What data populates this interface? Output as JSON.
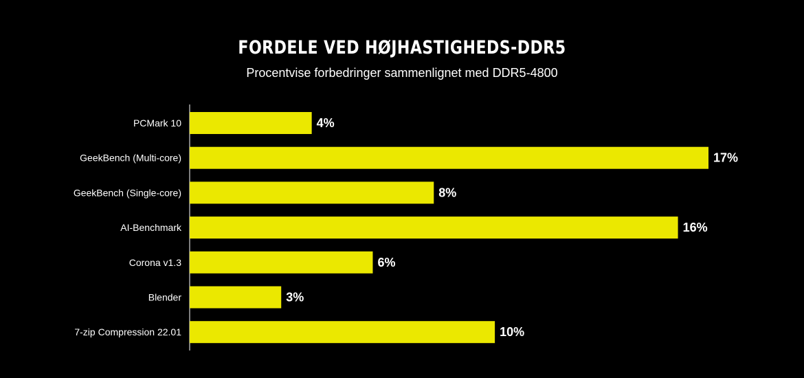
{
  "chart_data": {
    "type": "bar",
    "orientation": "horizontal",
    "title": "FORDELE VED HØJHASTIGHEDS-DDR5",
    "subtitle": "Procentvise forbedringer sammenlignet med DDR5-4800",
    "categories": [
      "PCMark 10",
      "GeekBench (Multi-core)",
      "GeekBench (Single-core)",
      "AI-Benchmark",
      "Corona v1.3",
      "Blender",
      "7-zip Compression 22.01"
    ],
    "values": [
      4,
      17,
      8,
      16,
      6,
      3,
      10
    ],
    "value_labels": [
      "4%",
      "17%",
      "8%",
      "16%",
      "6%",
      "3%",
      "10%"
    ],
    "unit": "%",
    "xlim": [
      0,
      17
    ],
    "grid": false,
    "legend": "none",
    "colors": {
      "bar": "#ebe800",
      "background": "#000000",
      "text": "#ffffff",
      "axis": "#ffffff"
    }
  }
}
